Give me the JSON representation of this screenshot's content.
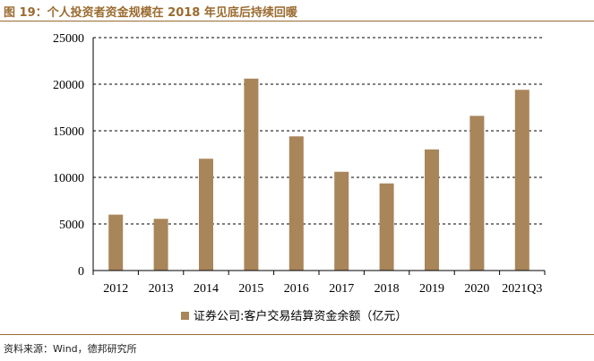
{
  "header": {
    "title": "图 19：个人投资者资金规模在 2018 年见底后持续回暖"
  },
  "footer": {
    "source": "资料来源：Wind，德邦研究所"
  },
  "colors": {
    "accent": "#9a6b2f",
    "bar": "#a9855a"
  },
  "chart_data": {
    "type": "bar",
    "categories": [
      "2012",
      "2013",
      "2014",
      "2015",
      "2016",
      "2017",
      "2018",
      "2019",
      "2020",
      "2021Q3"
    ],
    "series": [
      {
        "name": "证券公司:客户交易结算资金余额（亿元）",
        "values": [
          6000,
          5550,
          12000,
          20600,
          14400,
          10600,
          9350,
          13000,
          16600,
          19400
        ]
      }
    ],
    "ylim": [
      0,
      25000
    ],
    "yticks": [
      0,
      5000,
      10000,
      15000,
      20000,
      25000
    ],
    "grid": true,
    "grid_style": "dashed",
    "legend_position": "bottom"
  }
}
